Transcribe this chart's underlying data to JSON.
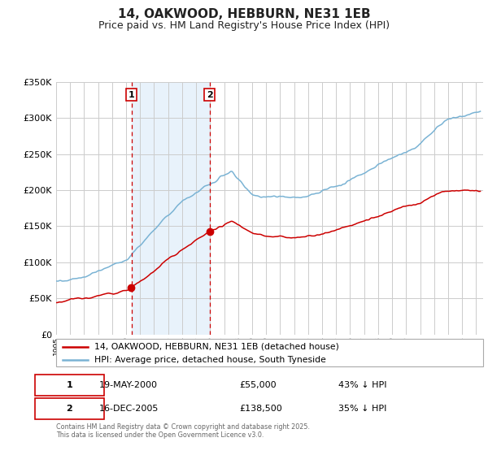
{
  "title": "14, OAKWOOD, HEBBURN, NE31 1EB",
  "subtitle": "Price paid vs. HM Land Registry's House Price Index (HPI)",
  "legend_line1": "14, OAKWOOD, HEBBURN, NE31 1EB (detached house)",
  "legend_line2": "HPI: Average price, detached house, South Tyneside",
  "footnote": "Contains HM Land Registry data © Crown copyright and database right 2025.\nThis data is licensed under the Open Government Licence v3.0.",
  "sale1_date": "19-MAY-2000",
  "sale1_price": "£55,000",
  "sale1_hpi": "43% ↓ HPI",
  "sale1_year": 2000.38,
  "sale1_value": 55000,
  "sale2_date": "16-DEC-2005",
  "sale2_price": "£138,500",
  "sale2_hpi": "35% ↓ HPI",
  "sale2_year": 2005.96,
  "sale2_value": 138500,
  "hpi_color": "#7ab3d4",
  "price_color": "#cc0000",
  "shade_color": "#e8f2fb",
  "dashed_color": "#cc0000",
  "background_color": "#ffffff",
  "grid_color": "#cccccc",
  "title_fontsize": 11,
  "subtitle_fontsize": 9,
  "xmin": 1995.0,
  "xmax": 2025.5,
  "ymin": 0,
  "ymax": 350000
}
